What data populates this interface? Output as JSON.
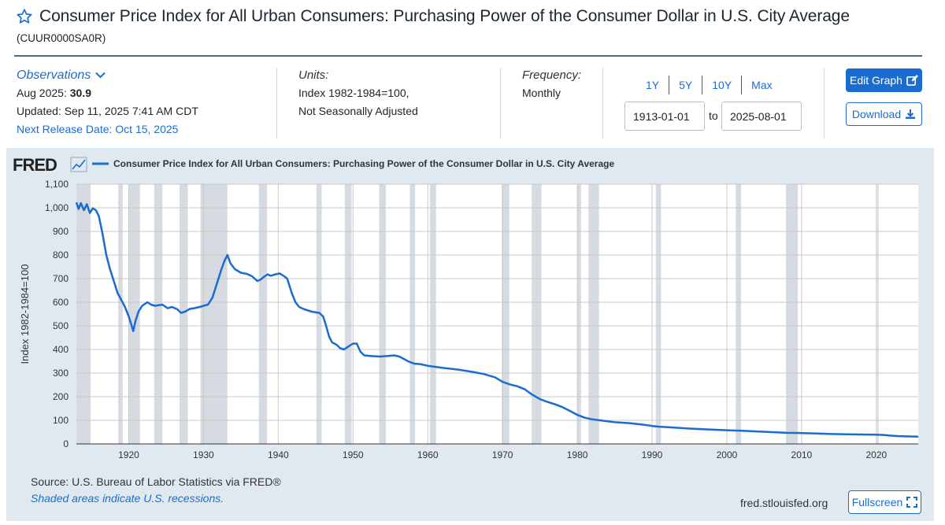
{
  "header": {
    "title": "Consumer Price Index for All Urban Consumers: Purchasing Power of the Consumer Dollar in U.S. City Average",
    "series_id": "(CUUR0000SA0R)"
  },
  "observations": {
    "link_label": "Observations",
    "latest_date": "Aug 2025:",
    "latest_value": "30.9",
    "updated": "Updated: Sep 11, 2025 7:41 AM CDT",
    "next_release": "Next Release Date: Oct 15, 2025"
  },
  "units": {
    "label": "Units:",
    "line1": "Index 1982-1984=100,",
    "line2": "Not Seasonally Adjusted"
  },
  "frequency": {
    "label": "Frequency:",
    "value": "Monthly"
  },
  "range_buttons": [
    "1Y",
    "5Y",
    "10Y",
    "Max"
  ],
  "date_range": {
    "start": "1913-01-01",
    "to_label": "to",
    "end": "2025-08-01"
  },
  "buttons": {
    "edit_graph": "Edit Graph",
    "download": "Download",
    "fullscreen": "Fullscreen"
  },
  "footer": {
    "source": "Source: U.S. Bureau of Labor Statistics via FRED®",
    "shaded_note": "Shaded areas indicate U.S. recessions.",
    "fred_url": "fred.stlouisfed.org"
  },
  "colors": {
    "series": "#1a6cd1",
    "recession": "#d5dbe1",
    "panel_bg": "#e1e9f0",
    "brand_blue": "#1a6cd1"
  },
  "chart_data": {
    "type": "line",
    "logo_text": "FRED",
    "legend_label": "Consumer Price Index for All Urban Consumers: Purchasing Power of the Consumer Dollar in U.S. City Average",
    "ylabel": "Index 1982-1984=100",
    "ylim": [
      0,
      1100
    ],
    "xlim": [
      1913.0,
      2025.6
    ],
    "y_ticks": [
      "0",
      "100",
      "200",
      "300",
      "400",
      "500",
      "600",
      "700",
      "800",
      "900",
      "1,000",
      "1,100"
    ],
    "y_tick_values": [
      0,
      100,
      200,
      300,
      400,
      500,
      600,
      700,
      800,
      900,
      1000,
      1100
    ],
    "x_ticks": [
      "1920",
      "1930",
      "1940",
      "1950",
      "1960",
      "1970",
      "1980",
      "1990",
      "2000",
      "2010",
      "2020"
    ],
    "x_tick_values": [
      1920,
      1930,
      1940,
      1950,
      1960,
      1970,
      1980,
      1990,
      2000,
      2010,
      2020
    ],
    "grid": true,
    "recessions": [
      [
        1913.0,
        1914.9
      ],
      [
        1918.6,
        1919.2
      ],
      [
        1920.0,
        1921.5
      ],
      [
        1923.4,
        1924.5
      ],
      [
        1926.8,
        1927.9
      ],
      [
        1929.6,
        1933.2
      ],
      [
        1937.4,
        1938.5
      ],
      [
        1945.1,
        1945.8
      ],
      [
        1948.9,
        1949.8
      ],
      [
        1953.5,
        1954.4
      ],
      [
        1957.6,
        1958.3
      ],
      [
        1960.3,
        1961.1
      ],
      [
        1969.9,
        1970.9
      ],
      [
        1973.9,
        1975.2
      ],
      [
        1980.0,
        1980.5
      ],
      [
        1981.5,
        1982.9
      ],
      [
        1990.5,
        1991.2
      ],
      [
        2001.2,
        2001.9
      ],
      [
        2007.9,
        2009.5
      ],
      [
        2020.1,
        2020.3
      ]
    ],
    "series": [
      {
        "name": "Consumer Price Index for All Urban Consumers: Purchasing Power of the Consumer Dollar in U.S. City Average",
        "x": [
          1913.0,
          1913.3,
          1913.6,
          1914.0,
          1914.4,
          1914.8,
          1915.2,
          1915.6,
          1916.0,
          1916.5,
          1917.0,
          1917.5,
          1918.0,
          1918.5,
          1919.0,
          1919.5,
          1920.0,
          1920.3,
          1920.6,
          1920.9,
          1921.3,
          1921.8,
          1922.5,
          1923.0,
          1923.5,
          1924.5,
          1925.2,
          1925.8,
          1926.5,
          1927.0,
          1927.5,
          1928.2,
          1928.8,
          1929.5,
          1930.0,
          1930.6,
          1931.2,
          1931.8,
          1932.4,
          1932.8,
          1933.2,
          1933.6,
          1934.2,
          1935.0,
          1935.8,
          1936.5,
          1937.2,
          1937.6,
          1938.2,
          1938.6,
          1939.0,
          1939.6,
          1940.2,
          1940.8,
          1941.2,
          1941.8,
          1942.3,
          1942.8,
          1943.5,
          1944.5,
          1945.5,
          1946.0,
          1946.4,
          1946.8,
          1947.2,
          1947.8,
          1948.3,
          1948.8,
          1949.5,
          1950.0,
          1950.5,
          1951.0,
          1951.5,
          1952.5,
          1953.5,
          1954.5,
          1955.5,
          1956.2,
          1956.8,
          1957.5,
          1958.2,
          1959.0,
          1960.0,
          1962.0,
          1964.0,
          1966.0,
          1967.5,
          1969.0,
          1970.0,
          1971.0,
          1972.0,
          1973.0,
          1974.0,
          1975.0,
          1976.0,
          1977.0,
          1978.0,
          1979.0,
          1980.0,
          1981.0,
          1982.0,
          1983.0,
          1985.0,
          1987.0,
          1989.0,
          1990.0,
          1991.0,
          1993.0,
          1995.0,
          1997.0,
          2000.0,
          2002.0,
          2004.0,
          2006.0,
          2008.0,
          2010.0,
          2012.0,
          2014.0,
          2016.0,
          2018.0,
          2020.0,
          2021.0,
          2022.0,
          2023.0,
          2024.0,
          2025.6
        ],
        "values": [
          1023,
          995,
          1020,
          990,
          1015,
          978,
          998,
          990,
          965,
          890,
          800,
          740,
          690,
          640,
          610,
          580,
          540,
          510,
          478,
          520,
          560,
          585,
          600,
          590,
          585,
          590,
          575,
          580,
          570,
          555,
          560,
          572,
          575,
          580,
          585,
          590,
          620,
          680,
          740,
          775,
          800,
          765,
          740,
          725,
          720,
          710,
          690,
          695,
          710,
          718,
          712,
          718,
          722,
          710,
          700,
          640,
          600,
          580,
          570,
          560,
          555,
          540,
          500,
          455,
          430,
          420,
          405,
          400,
          415,
          425,
          425,
          390,
          375,
          372,
          370,
          372,
          375,
          370,
          360,
          348,
          340,
          338,
          331,
          322,
          315,
          305,
          296,
          282,
          263,
          252,
          244,
          231,
          208,
          190,
          178,
          168,
          156,
          140,
          123,
          111,
          104,
          100,
          92,
          88,
          81,
          76,
          73,
          69,
          65,
          62,
          58,
          56,
          53,
          50,
          47,
          46,
          44,
          42,
          41,
          40,
          39,
          38,
          35,
          33,
          32,
          30.9
        ]
      }
    ]
  }
}
